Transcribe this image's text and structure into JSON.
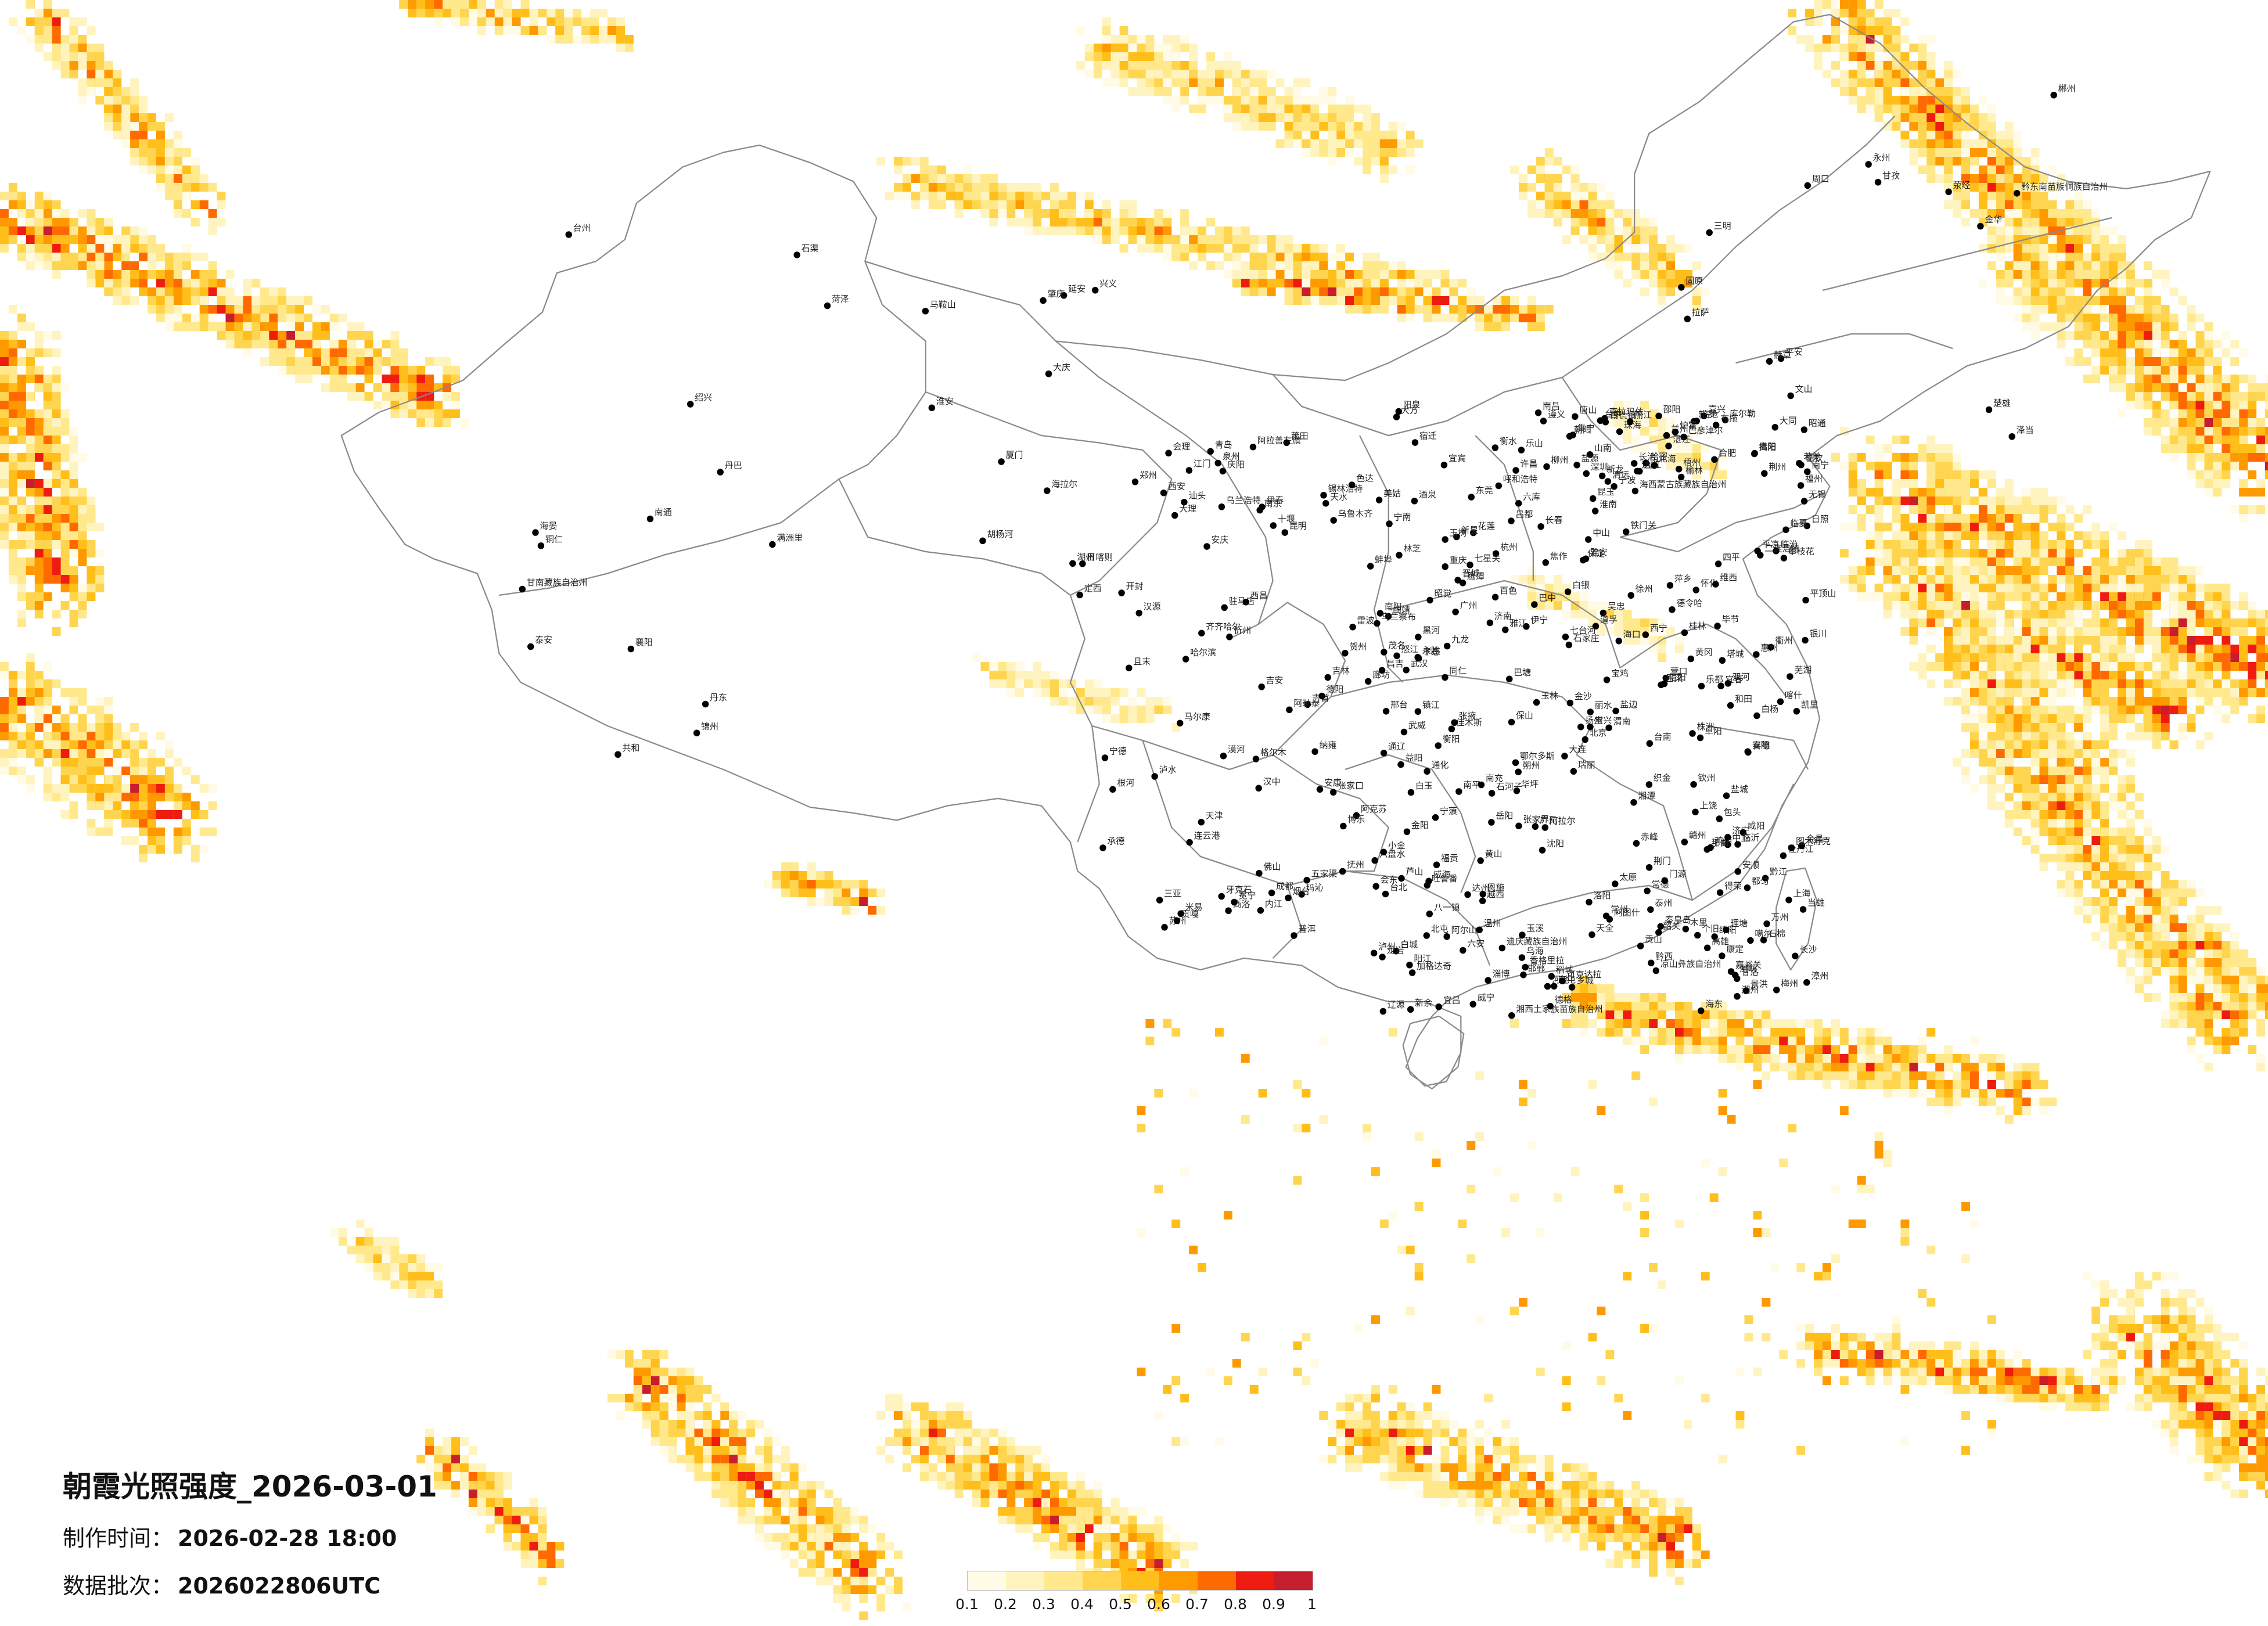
{
  "title": "朝霞光照强度_2026-03-01",
  "made_time": {
    "label": "制作时间：",
    "value": "2026-02-28 18:00"
  },
  "data_batch": {
    "label": "数据批次：",
    "value": "2026022806UTC"
  },
  "legend": {
    "ticks": [
      "0.1",
      "0.2",
      "0.3",
      "0.4",
      "0.5",
      "0.6",
      "0.7",
      "0.8",
      "0.9",
      "1"
    ],
    "colors": [
      "#fffbe6",
      "#fff4bf",
      "#ffe98c",
      "#ffd54f",
      "#ffbe1a",
      "#ff9900",
      "#ff6a00",
      "#ee1c10",
      "#c61e2c"
    ]
  },
  "city_labels": [
    "漠河",
    "加格达奇",
    "黑河",
    "海拉尔",
    "满洲里",
    "齐齐哈尔",
    "大庆",
    "伊春",
    "佳木斯",
    "哈尔滨",
    "牡丹江",
    "七台河",
    "鸡西",
    "乌兰浩特",
    "白城",
    "通辽",
    "四平",
    "长春",
    "吉林",
    "辽源",
    "通化",
    "丹东",
    "大连",
    "沈阳",
    "营口",
    "锦州",
    "朝阳",
    "承德",
    "赤峰",
    "张家口",
    "北京",
    "天津",
    "唐山",
    "秦皇岛",
    "廊坊",
    "保定",
    "石家庄",
    "衡水",
    "邢台",
    "邯郸",
    "太原",
    "忻州",
    "大同",
    "朔州",
    "阳泉",
    "长治",
    "晋城",
    "临汾",
    "运城",
    "吕梁",
    "呼和浩特",
    "包头",
    "鄂尔多斯",
    "乌海",
    "巴彦淖尔",
    "阿拉善左旗",
    "锡林浩特",
    "二连浩特",
    "银川",
    "吴忠",
    "固原",
    "中卫",
    "兰州",
    "白银",
    "天水",
    "定西",
    "平凉",
    "庆阳",
    "武威",
    "金昌",
    "张掖",
    "嘉峪关",
    "酒泉",
    "西宁",
    "海东",
    "格尔木",
    "德令哈",
    "玛沁",
    "乌鲁木齐",
    "昌吉",
    "石河子",
    "克拉玛依",
    "伊宁",
    "阿克苏",
    "喀什",
    "和田",
    "吐鲁番",
    "哈密",
    "库尔勒",
    "拉萨",
    "日喀则",
    "山南",
    "林芝",
    "昌都",
    "那曲",
    "噶尔",
    "西安",
    "咸阳",
    "宝鸡",
    "延安",
    "榆林",
    "渭南",
    "汉中",
    "安康",
    "商洛",
    "郑州",
    "开封",
    "洛阳",
    "平顶山",
    "新乡",
    "焦作",
    "安阳",
    "南阳",
    "信阳",
    "周口",
    "驻马店",
    "许昌",
    "济南",
    "青岛",
    "淄博",
    "潍坊",
    "烟台",
    "威海",
    "临沂",
    "菏泽",
    "济宁",
    "泰安",
    "日照",
    "连云港",
    "徐州",
    "宿迁",
    "淮安",
    "盐城",
    "扬州",
    "泰州",
    "南通",
    "南京",
    "镇江",
    "常州",
    "无锡",
    "苏州",
    "上海",
    "杭州",
    "嘉兴",
    "湖州",
    "绍兴",
    "宁波",
    "台州",
    "温州",
    "金华",
    "衢州",
    "丽水",
    "合肥",
    "蚌埠",
    "阜阳",
    "淮南",
    "六安",
    "安庆",
    "芜湖",
    "马鞍山",
    "黄山",
    "武汉",
    "孝感",
    "黄冈",
    "宜昌",
    "荆州",
    "荆门",
    "襄阳",
    "十堰",
    "恩施",
    "长沙",
    "株洲",
    "湘潭",
    "衡阳",
    "岳阳",
    "常德",
    "益阳",
    "邵阳",
    "怀化",
    "郴州",
    "永州",
    "张家界",
    "吉首",
    "南昌",
    "九江",
    "景德镇",
    "上饶",
    "鹰潭",
    "抚州",
    "宜春",
    "新余",
    "萍乡",
    "吉安",
    "赣州",
    "福州",
    "厦门",
    "泉州",
    "莆田",
    "漳州",
    "龙岩",
    "三明",
    "南平",
    "宁德",
    "台北",
    "台中",
    "台南",
    "高雄",
    "花莲",
    "广州",
    "深圳",
    "珠海",
    "佛山",
    "东莞",
    "中山",
    "江门",
    "肇庆",
    "惠州",
    "汕头",
    "潮州",
    "揭阳",
    "梅州",
    "韶关",
    "清远",
    "湛江",
    "茂名",
    "阳江",
    "南宁",
    "桂林",
    "柳州",
    "梧州",
    "北海",
    "钦州",
    "玉林",
    "百色",
    "河池",
    "贺州",
    "海口",
    "三亚",
    "成都",
    "绵阳",
    "德阳",
    "南充",
    "达州",
    "广元",
    "巴中",
    "宜宾",
    "泸州",
    "内江",
    "乐山",
    "雅安",
    "西昌",
    "攀枝花",
    "康定",
    "马尔康",
    "重庆",
    "万州",
    "黔江",
    "贵阳",
    "遵义",
    "六盘水",
    "安顺",
    "毕节",
    "铜仁",
    "凯里",
    "都匀",
    "兴义",
    "昆明",
    "曲靖",
    "玉溪",
    "大理",
    "丽江",
    "保山",
    "临沧",
    "普洱",
    "景洪",
    "文山",
    "个旧",
    "昭通",
    "楚雄",
    "瑞丽",
    "香格里拉",
    "怒江",
    "迪庆藏族自治州",
    "凉山彝族自治州",
    "甘南藏族自治州",
    "临夏",
    "海西蒙古族藏族自治州",
    "黔东南苗族侗族自治州",
    "湘西土家族苗族自治州",
    "八一镇",
    "泽当",
    "当雄",
    "贡嘎",
    "阿尔山",
    "根河",
    "牙克石",
    "乌兰察布",
    "集宁",
    "阿勒泰",
    "塔城",
    "博乐",
    "奎屯",
    "且末",
    "若羌",
    "阿图什",
    "图木舒克",
    "北屯",
    "五家渠",
    "可克达拉",
    "双河",
    "昆玉",
    "铁门关",
    "胡杨河",
    "新星",
    "白杨",
    "阿拉尔",
    "玉树",
    "共和",
    "同仁",
    "平安",
    "乐都",
    "门源",
    "海晏",
    "德钦",
    "泸水",
    "六库",
    "福贡",
    "贡山",
    "维西",
    "宁蒗",
    "永胜",
    "华坪",
    "盐边",
    "米易",
    "会理",
    "会东",
    "宁南",
    "布拖",
    "金阳",
    "雷波",
    "美姑",
    "昭觉",
    "喜德",
    "冕宁",
    "越西",
    "甘洛",
    "石棉",
    "汉源",
    "荥经",
    "天全",
    "芦山",
    "宝兴",
    "小金",
    "丹巴",
    "道孚",
    "炉霍",
    "甘孜",
    "新龙",
    "德格",
    "白玉",
    "石渠",
    "色达",
    "理塘",
    "巴塘",
    "乡城",
    "稻城",
    "得荣",
    "九龙",
    "雅江",
    "木里",
    "盐源",
    "七星关",
    "大方",
    "黔西",
    "金沙",
    "织金",
    "纳雍",
    "威宁",
    "赫章"
  ]
}
